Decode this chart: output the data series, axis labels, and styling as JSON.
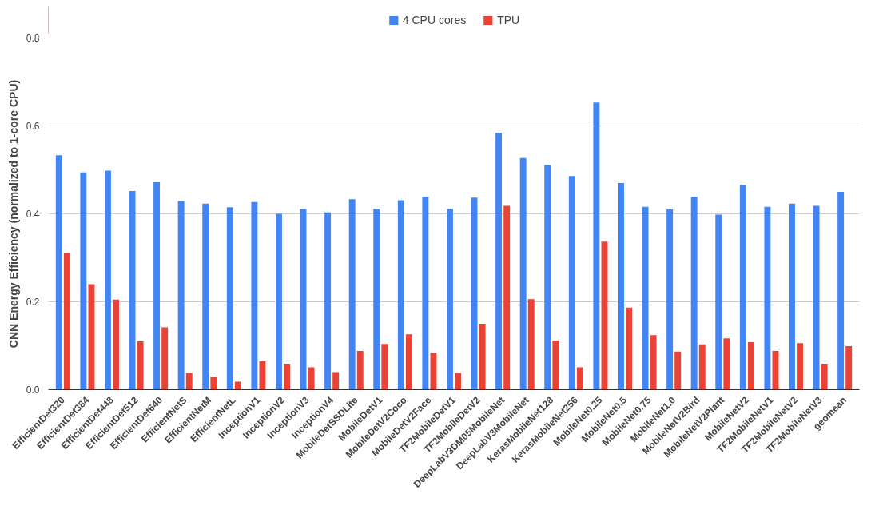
{
  "chart_data": {
    "type": "bar",
    "ylabel": "CNN Energy Efficiency (normalized to 1-core CPU)",
    "categories": [
      "EfficientDet320",
      "EfficientDet384",
      "EfficientDet448",
      "EfficientDet512",
      "EfficientDet640",
      "EfficientNetS",
      "EfficientNetM",
      "EfficientNetL",
      "InceptionV1",
      "InceptionV2",
      "InceptionV3",
      "InceptionV4",
      "MobileDetSSDLite",
      "MobileDetV1",
      "MobileDetV2Coco",
      "MobileDetV2Face",
      "TF2MobileDetV1",
      "TF2MobileDetV2",
      "DeepLabV3DM05MobileNet",
      "DeepLabV3MobileNet",
      "KerasMobileNet128",
      "KerasMobileNet256",
      "MobileNet0.25",
      "MobileNet0.5",
      "MobileNet0.75",
      "MobileNet1.0",
      "MobileNetV2Bird",
      "MobileNetV2Plant",
      "MobileNetV2",
      "TF2MobileNetV1",
      "TF2MobileNetV2",
      "TF2MobileNetV3",
      "geomean"
    ],
    "series": [
      {
        "name": "4 CPU cores",
        "color": "#4285f4",
        "values": [
          0.533,
          0.494,
          0.498,
          0.452,
          0.472,
          0.429,
          0.423,
          0.415,
          0.427,
          0.4,
          0.412,
          0.403,
          0.433,
          0.412,
          0.431,
          0.439,
          0.412,
          0.437,
          0.584,
          0.527,
          0.511,
          0.486,
          0.653,
          0.47,
          0.416,
          0.41,
          0.439,
          0.398,
          0.466,
          0.416,
          0.423,
          0.418,
          0.45
        ]
      },
      {
        "name": "TPU",
        "color": "#ea4335",
        "values": [
          0.311,
          0.24,
          0.205,
          0.11,
          0.142,
          0.038,
          0.03,
          0.018,
          0.065,
          0.059,
          0.051,
          0.04,
          0.088,
          0.104,
          0.126,
          0.084,
          0.038,
          0.15,
          0.418,
          0.206,
          0.112,
          0.051,
          0.337,
          0.187,
          0.124,
          0.087,
          0.103,
          0.117,
          0.108,
          0.088,
          0.106,
          0.059,
          0.099
        ]
      }
    ],
    "ylim": [
      0,
      0.8
    ],
    "yticks": [
      {
        "value": 0,
        "label": "0.0"
      },
      0.2,
      0.4,
      0.6,
      0.8
    ],
    "grid": "y",
    "legend": "top"
  }
}
